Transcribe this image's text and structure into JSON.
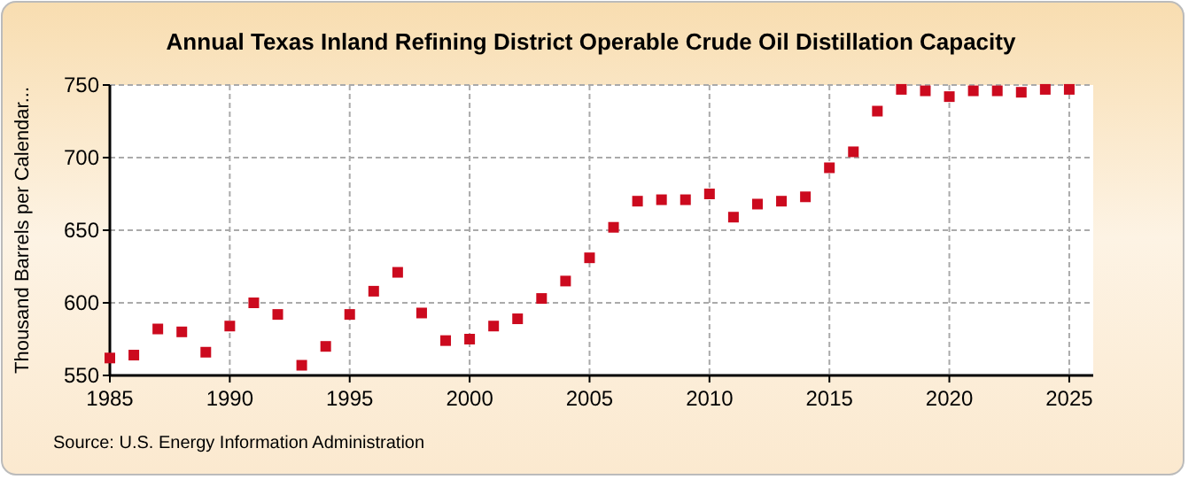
{
  "chart_data": {
    "type": "scatter",
    "title": "Annual Texas Inland Refining District Operable Crude Oil Distillation Capacity",
    "ylabel": "Thousand Barrels per Calendar...",
    "annotations": [
      "Source: U.S. Energy Information Administration"
    ],
    "x": [
      1985,
      1986,
      1987,
      1988,
      1989,
      1990,
      1991,
      1992,
      1993,
      1994,
      1995,
      1996,
      1997,
      1998,
      1999,
      2000,
      2001,
      2002,
      2003,
      2004,
      2005,
      2006,
      2007,
      2008,
      2009,
      2010,
      2011,
      2012,
      2013,
      2014,
      2015,
      2016,
      2017,
      2018,
      2019,
      2020,
      2021,
      2022,
      2023,
      2024,
      2025
    ],
    "series": [
      {
        "color": "#cc0a1e",
        "values": [
          562,
          564,
          582,
          580,
          566,
          584,
          600,
          592,
          557,
          570,
          592,
          608,
          621,
          593,
          574,
          575,
          584,
          589,
          603,
          615,
          631,
          652,
          670,
          671,
          671,
          675,
          659,
          668,
          670,
          673,
          693,
          704,
          732,
          747,
          746,
          742,
          746,
          746,
          745,
          747,
          747
        ]
      }
    ],
    "marker": "square",
    "xlim": [
      1985,
      2026
    ],
    "ylim": [
      550,
      750
    ],
    "xticks": [
      1985,
      1990,
      1995,
      2000,
      2005,
      2010,
      2015,
      2020,
      2025
    ],
    "yticks": [
      550,
      600,
      650,
      700,
      750
    ],
    "grid": true
  }
}
